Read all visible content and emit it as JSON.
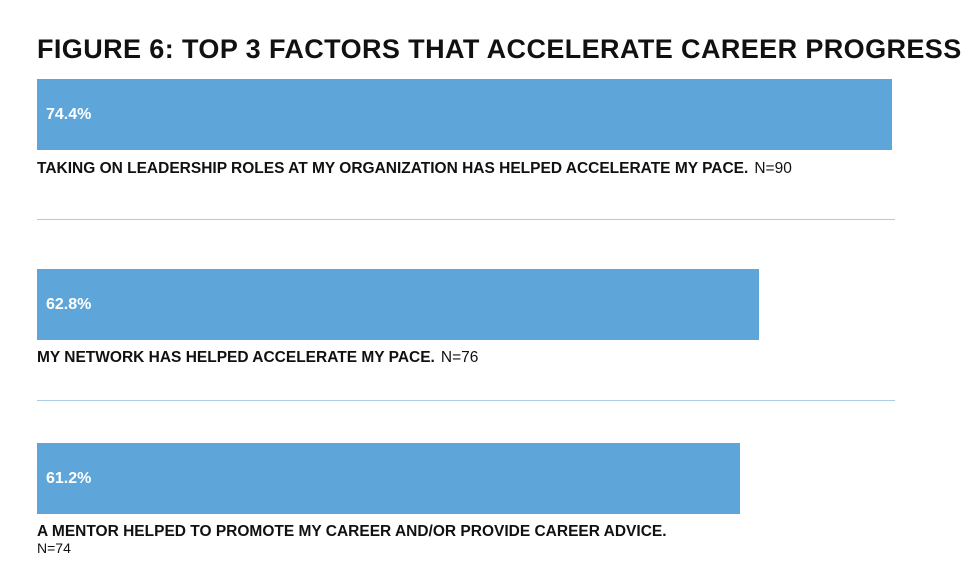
{
  "chart_data": {
    "type": "bar",
    "title": "FIGURE 6: TOP 3 FACTORS THAT ACCELERATE CAREER PROGRESS",
    "orientation": "horizontal",
    "xlim": [
      0,
      74.4
    ],
    "grid": false,
    "bar_color": "#5ea6d9",
    "divider_color": "#a9cde6",
    "categories": [
      "TAKING ON LEADERSHIP ROLES AT MY ORGANIZATION HAS HELPED ACCELERATE MY PACE.",
      "MY NETWORK HAS HELPED ACCELERATE MY PACE.",
      "A MENTOR HELPED TO PROMOTE MY CAREER AND/OR PROVIDE CAREER ADVICE."
    ],
    "values": [
      74.4,
      62.8,
      61.2
    ],
    "value_labels": [
      "74.4%",
      "62.8%",
      "61.2%"
    ],
    "n_labels": [
      "N=90",
      "N=76",
      "N=74"
    ]
  }
}
